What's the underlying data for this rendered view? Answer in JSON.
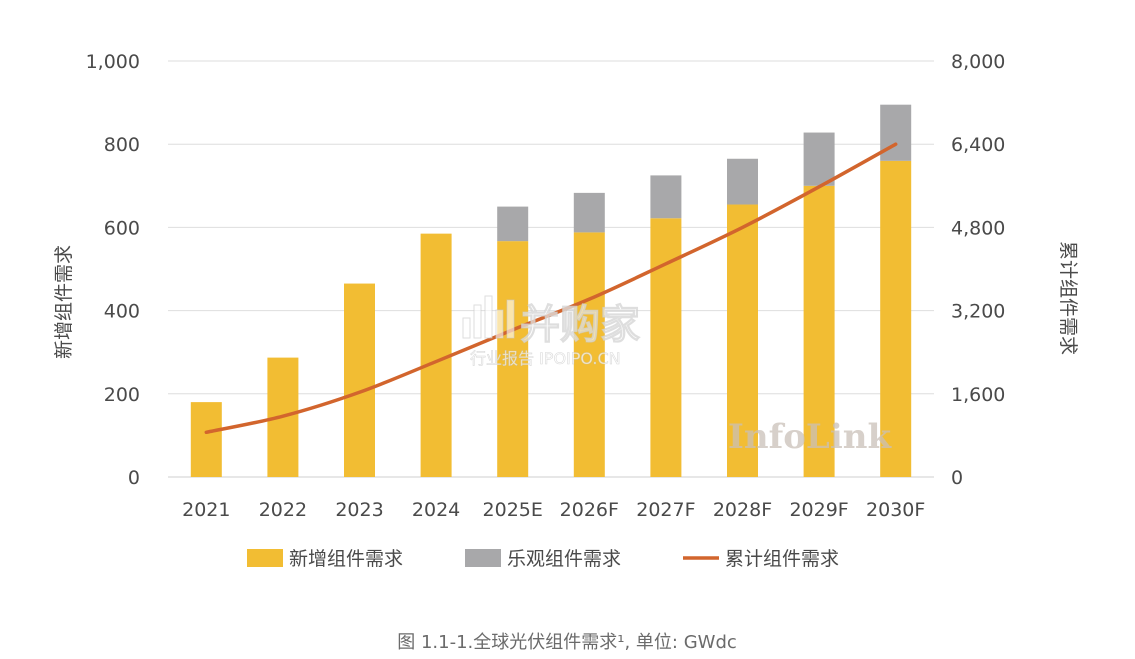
{
  "chart_data": {
    "type": "bar",
    "title": "",
    "categories": [
      "2021",
      "2022",
      "2023",
      "2024",
      "2025E",
      "2026F",
      "2027F",
      "2028F",
      "2029F",
      "2030F"
    ],
    "series": [
      {
        "name": "新增组件需求",
        "type": "bar",
        "axis": "left",
        "stacked": true,
        "color": "#F2BD33",
        "values": [
          180,
          287,
          465,
          585,
          567,
          588,
          622,
          655,
          700,
          760
        ]
      },
      {
        "name": "乐观组件需求",
        "type": "bar",
        "axis": "left",
        "stacked": true,
        "color": "#A8A8AA",
        "values": [
          0,
          0,
          0,
          0,
          83,
          95,
          103,
          110,
          128,
          135
        ]
      },
      {
        "name": "累计组件需求",
        "type": "line",
        "axis": "right",
        "color": "#D2652D",
        "values": [
          860,
          1170,
          1630,
          2220,
          2830,
          3420,
          4100,
          4800,
          5580,
          6400
        ]
      }
    ],
    "ylabel": "新增组件需求",
    "ylabel_right": "累计组件需求",
    "ylim": [
      0,
      1000
    ],
    "ylim_right": [
      0,
      8000
    ],
    "yticks": [
      "0",
      "200",
      "400",
      "600",
      "800",
      "1,000"
    ],
    "yticks_right": [
      "0",
      "1,600",
      "3,200",
      "4,800",
      "6,400",
      "8,000"
    ],
    "grid": true,
    "legend_position": "bottom"
  },
  "caption": "图 1.1-1.全球光伏组件需求¹, 单位: GWdc",
  "watermark": {
    "brand": "并购家",
    "sub": "行业报告 IPOIPO.CN",
    "logo": "InfoLink"
  }
}
